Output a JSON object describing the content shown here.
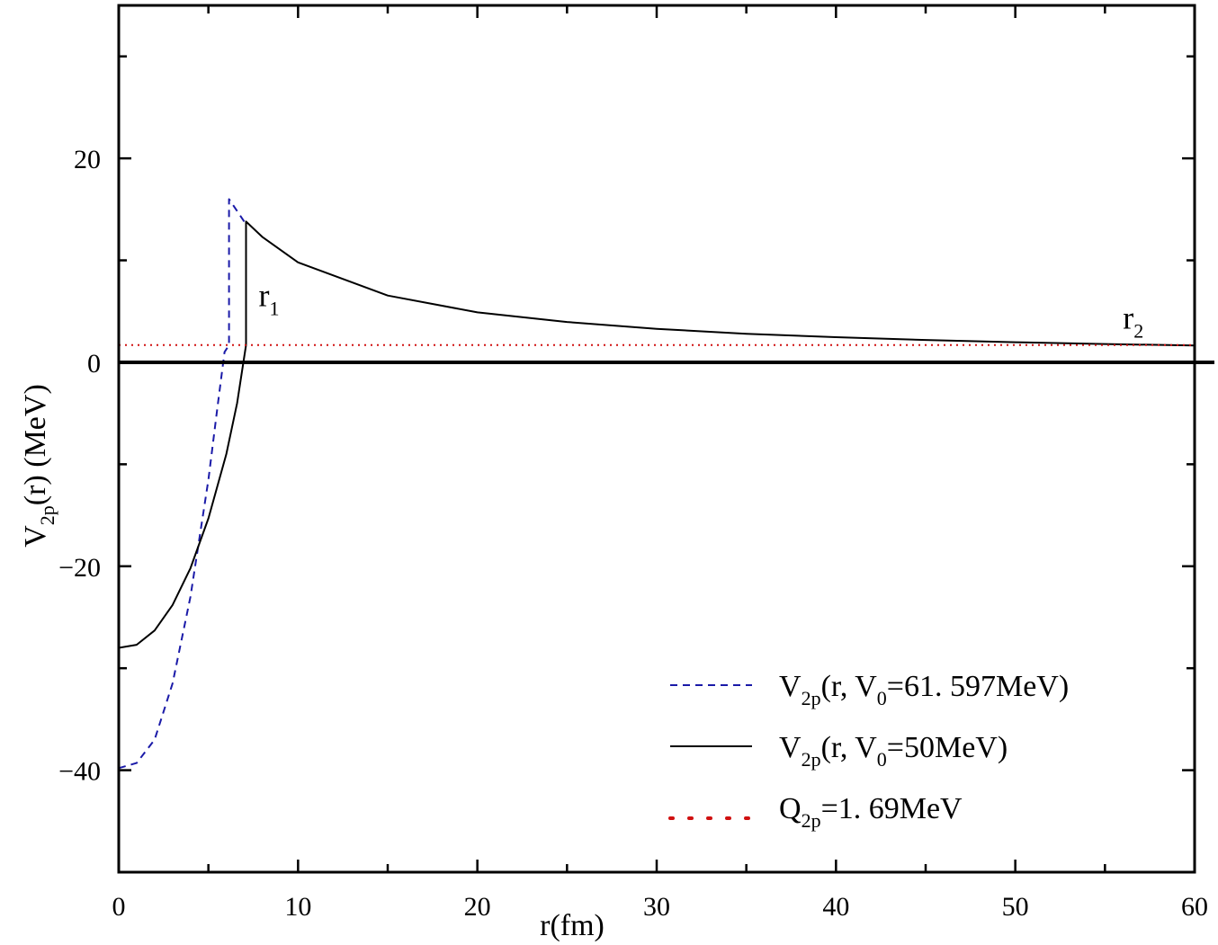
{
  "chart_data": {
    "type": "line",
    "xlabel": "r(fm)",
    "ylabel": {
      "main": "V",
      "sub": "2p",
      "rest": "(r) (MeV)"
    },
    "xlim": [
      0,
      60
    ],
    "ylim": [
      -50,
      35
    ],
    "x_ticks": [
      "0",
      "10",
      "20",
      "30",
      "40",
      "50",
      "60"
    ],
    "y_ticks": [
      "-40",
      "-20",
      "0",
      "20"
    ],
    "x_tick_values": [
      0,
      10,
      20,
      30,
      40,
      50,
      60
    ],
    "y_tick_values": [
      -40,
      -20,
      0,
      20
    ],
    "zero_line": 0,
    "annotations": [
      {
        "main": "r",
        "sub": "1",
        "x": 7.8,
        "y": 5.5
      },
      {
        "main": "r",
        "sub": "2",
        "x": 56.0,
        "y": 3.3
      }
    ],
    "legend_position": "bottom-right",
    "series": [
      {
        "legend": {
          "main": "V",
          "sub": "2p",
          "rest": "(r, V",
          "sub2": "0",
          "tail": "=61. 597MeV)"
        },
        "style": "dashed",
        "color": "#1a1aa8",
        "points": [
          [
            0,
            -39.8
          ],
          [
            1,
            -39.3
          ],
          [
            2,
            -37.0
          ],
          [
            3,
            -31.5
          ],
          [
            4,
            -23.0
          ],
          [
            5,
            -11.5
          ],
          [
            5.5,
            -4.5
          ],
          [
            5.9,
            1.0
          ],
          [
            6.15,
            1.69
          ],
          [
            6.15,
            16.0
          ],
          [
            7,
            13.8
          ]
        ]
      },
      {
        "legend": {
          "main": "V",
          "sub": "2p",
          "rest": "(r, V",
          "sub2": "0",
          "tail": "=50MeV)"
        },
        "style": "solid",
        "color": "#000000",
        "points": [
          [
            0,
            -28.0
          ],
          [
            1,
            -27.7
          ],
          [
            2,
            -26.3
          ],
          [
            3,
            -23.8
          ],
          [
            4,
            -20.2
          ],
          [
            5,
            -15.3
          ],
          [
            6,
            -9.0
          ],
          [
            6.6,
            -4.0
          ],
          [
            7.1,
            1.69
          ],
          [
            7.1,
            13.8
          ],
          [
            8,
            12.3
          ],
          [
            10,
            9.8
          ],
          [
            15,
            6.55
          ],
          [
            20,
            4.9
          ],
          [
            25,
            3.95
          ],
          [
            30,
            3.28
          ],
          [
            35,
            2.8
          ],
          [
            40,
            2.46
          ],
          [
            45,
            2.19
          ],
          [
            50,
            1.97
          ],
          [
            55,
            1.79
          ],
          [
            60,
            1.64
          ]
        ]
      },
      {
        "legend": {
          "main": "Q",
          "sub": "2p",
          "rest": "=1. 69MeV"
        },
        "style": "dotted",
        "color": "#d01010",
        "points": [
          [
            0,
            1.69
          ],
          [
            60,
            1.69
          ]
        ]
      }
    ]
  }
}
